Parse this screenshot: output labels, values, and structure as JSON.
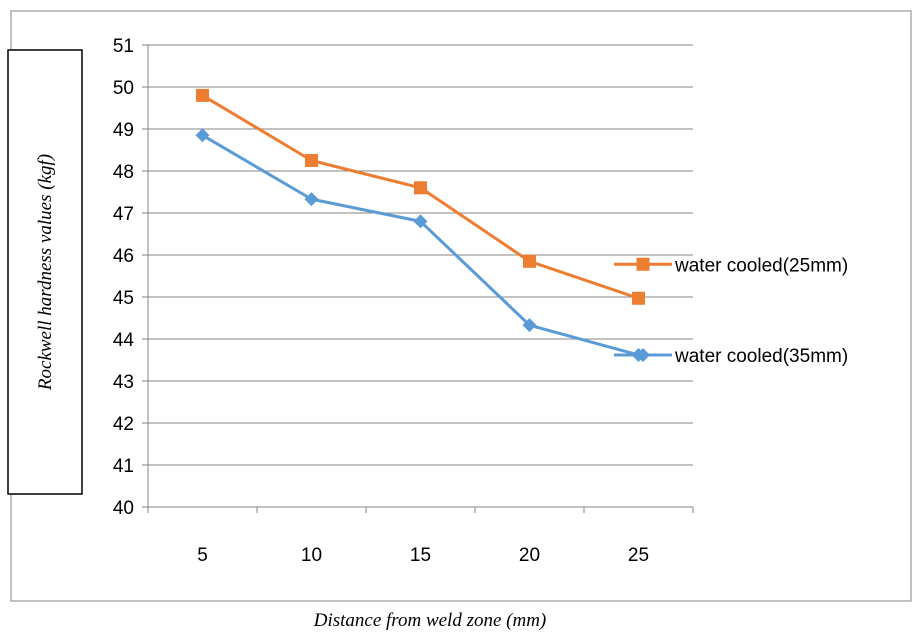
{
  "chart_data": {
    "type": "line",
    "title": "",
    "xlabel": "Distance from weld zone (mm)",
    "ylabel": "Rockwell hardness values (kgf)",
    "categories": [
      "5",
      "10",
      "15",
      "20",
      "25"
    ],
    "ylim": [
      40,
      51
    ],
    "yticks": [
      "40",
      "41",
      "42",
      "43",
      "44",
      "45",
      "46",
      "47",
      "48",
      "49",
      "50",
      "51"
    ],
    "grid": "horizontal",
    "legend_position": "right",
    "series": [
      {
        "name": "water cooled(25mm)",
        "color": "#ED7D31",
        "marker": "square",
        "values": [
          49.8,
          48.25,
          47.6,
          45.85,
          44.97
        ]
      },
      {
        "name": "water cooled(35mm)",
        "color": "#5B9BD5",
        "marker": "diamond",
        "values": [
          48.85,
          47.33,
          46.8,
          44.33,
          43.62
        ]
      }
    ]
  }
}
